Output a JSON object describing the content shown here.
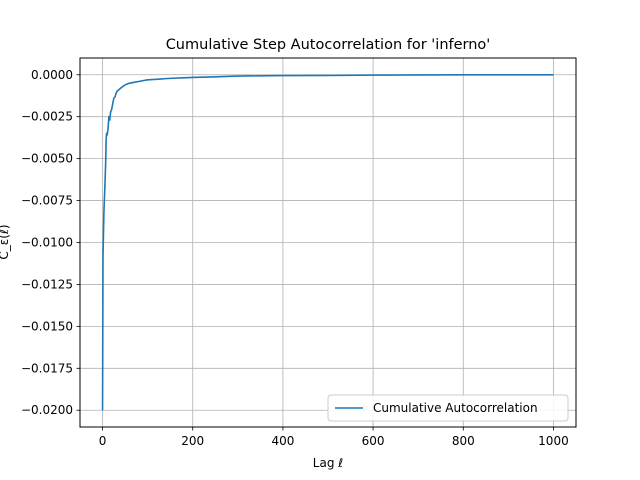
{
  "chart_data": {
    "type": "line",
    "title": "Cumulative Step Autocorrelation for 'inferno'",
    "xlabel": "Lag ℓ",
    "ylabel": "C_ε(ℓ)",
    "xlim": [
      -50,
      1050
    ],
    "ylim": [
      -0.021,
      0.001
    ],
    "grid": true,
    "legend_position": "lower right",
    "x_ticks": [
      {
        "value": 0,
        "label": "0"
      },
      {
        "value": 200,
        "label": "200"
      },
      {
        "value": 400,
        "label": "400"
      },
      {
        "value": 600,
        "label": "600"
      },
      {
        "value": 800,
        "label": "800"
      },
      {
        "value": 1000,
        "label": "1000"
      }
    ],
    "y_ticks": [
      {
        "value": 0.0,
        "label": "0.0000"
      },
      {
        "value": -0.0025,
        "label": "−0.0025"
      },
      {
        "value": -0.005,
        "label": "−0.0050"
      },
      {
        "value": -0.0075,
        "label": "−0.0075"
      },
      {
        "value": -0.01,
        "label": "−0.0100"
      },
      {
        "value": -0.0125,
        "label": "−0.0125"
      },
      {
        "value": -0.015,
        "label": "−0.0150"
      },
      {
        "value": -0.0175,
        "label": "−0.0175"
      },
      {
        "value": -0.02,
        "label": "−0.0200"
      }
    ],
    "series": [
      {
        "name": "Cumulative Autocorrelation",
        "color": "#1f77b4",
        "x": [
          0,
          1,
          2,
          3,
          4,
          5,
          6,
          7,
          8,
          9,
          10,
          12,
          14,
          16,
          18,
          20,
          22,
          25,
          28,
          30,
          33,
          36,
          40,
          45,
          50,
          55,
          60,
          70,
          80,
          90,
          100,
          120,
          140,
          160,
          180,
          200,
          250,
          300,
          350,
          400,
          500,
          600,
          700,
          800,
          900,
          1000
        ],
        "y": [
          -0.02,
          -0.0108,
          -0.0095,
          -0.0082,
          -0.0075,
          -0.0068,
          -0.006,
          -0.0052,
          -0.0038,
          -0.0035,
          -0.0036,
          -0.0033,
          -0.0025,
          -0.0027,
          -0.0022,
          -0.0021,
          -0.0018,
          -0.0014,
          -0.0013,
          -0.0011,
          -0.00095,
          -0.0009,
          -0.0008,
          -0.0007,
          -0.0006,
          -0.00055,
          -0.0005,
          -0.00045,
          -0.0004,
          -0.00035,
          -0.0003,
          -0.00027,
          -0.00023,
          -0.0002,
          -0.00018,
          -0.00016,
          -0.00012,
          -8e-05,
          -6e-05,
          -5e-05,
          -4e-05,
          -2e-05,
          -1e-05,
          0.0,
          0.0,
          0.0
        ]
      }
    ]
  }
}
